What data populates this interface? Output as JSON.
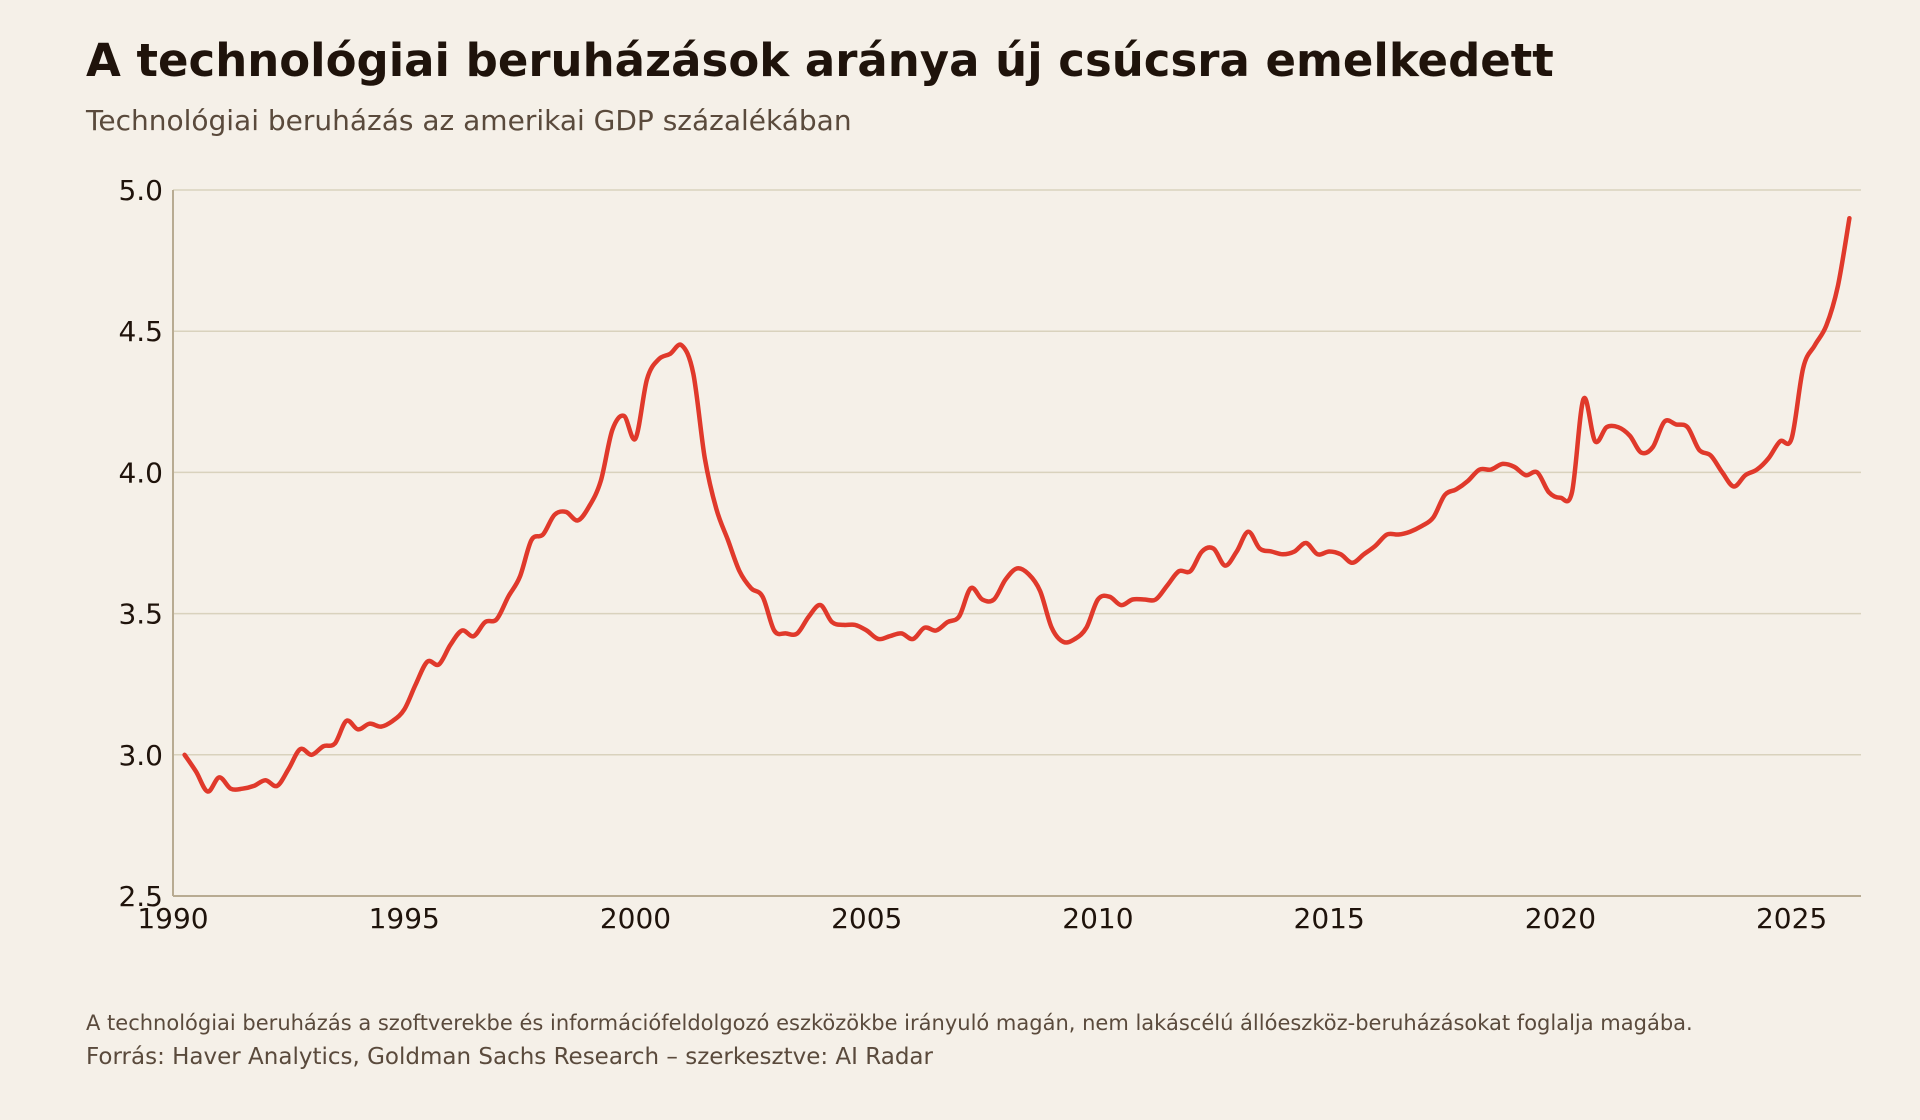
{
  "title": "A technológiai beruházások aránya új csúcsra emelkedett",
  "subtitle": "Technológiai beruházás az amerikai GDP százalékában",
  "footnote": "A technológiai beruházás a szoftverekbe és információfeldolgozó eszközökbe irányuló magán, nem lakáscélú állóeszköz-beruházásokat foglalja magába.",
  "source": "Forrás: Haver Analytics, Goldman Sachs Research – szerkesztve: AI Radar",
  "colors": {
    "background": "#f5f0e8",
    "line": "#e0392b",
    "grid": "#d9d2bd",
    "axis": "#b8ab92",
    "text": "#1f130b",
    "muted": "#5a4a3c"
  },
  "chart_data": {
    "type": "line",
    "xlim": [
      1990,
      2026.5
    ],
    "ylim": [
      2.5,
      5.0
    ],
    "xticks": [
      1990,
      1995,
      2000,
      2005,
      2010,
      2015,
      2020,
      2025
    ],
    "xtick_labels": [
      "1990",
      "1995",
      "2000",
      "2005",
      "2010",
      "2015",
      "2020",
      "2025"
    ],
    "yticks": [
      2.5,
      3.0,
      3.5,
      4.0,
      4.5,
      5.0
    ],
    "ytick_labels": [
      "2.5",
      "3.0",
      "3.5",
      "4.0",
      "4.5",
      "5.0"
    ],
    "grid": "horizontal",
    "series": [
      {
        "color": "#e0392b",
        "x": [
          1990.25,
          1990.5,
          1990.75,
          1991.0,
          1991.25,
          1991.5,
          1991.75,
          1992.0,
          1992.25,
          1992.5,
          1992.75,
          1993.0,
          1993.25,
          1993.5,
          1993.75,
          1994.0,
          1994.25,
          1994.5,
          1994.75,
          1995.0,
          1995.25,
          1995.5,
          1995.75,
          1996.0,
          1996.25,
          1996.5,
          1996.75,
          1997.0,
          1997.25,
          1997.5,
          1997.75,
          1998.0,
          1998.25,
          1998.5,
          1998.75,
          1999.0,
          1999.25,
          1999.5,
          1999.75,
          2000.0,
          2000.25,
          2000.5,
          2000.75,
          2001.0,
          2001.25,
          2001.5,
          2001.75,
          2002.0,
          2002.25,
          2002.5,
          2002.75,
          2003.0,
          2003.25,
          2003.5,
          2003.75,
          2004.0,
          2004.25,
          2004.5,
          2004.75,
          2005.0,
          2005.25,
          2005.5,
          2005.75,
          2006.0,
          2006.25,
          2006.5,
          2006.75,
          2007.0,
          2007.25,
          2007.5,
          2007.75,
          2008.0,
          2008.25,
          2008.5,
          2008.75,
          2009.0,
          2009.25,
          2009.5,
          2009.75,
          2010.0,
          2010.25,
          2010.5,
          2010.75,
          2011.0,
          2011.25,
          2011.5,
          2011.75,
          2012.0,
          2012.25,
          2012.5,
          2012.75,
          2013.0,
          2013.25,
          2013.5,
          2013.75,
          2014.0,
          2014.25,
          2014.5,
          2014.75,
          2015.0,
          2015.25,
          2015.5,
          2015.75,
          2016.0,
          2016.25,
          2016.5,
          2016.75,
          2017.0,
          2017.25,
          2017.5,
          2017.75,
          2018.0,
          2018.25,
          2018.5,
          2018.75,
          2019.0,
          2019.25,
          2019.5,
          2019.75,
          2020.0,
          2020.25,
          2020.5,
          2020.75,
          2021.0,
          2021.25,
          2021.5,
          2021.75,
          2022.0,
          2022.25,
          2022.5,
          2022.75,
          2023.0,
          2023.25,
          2023.5,
          2023.75,
          2024.0,
          2024.25,
          2024.5,
          2024.75,
          2025.0,
          2025.25,
          2025.5,
          2025.75,
          2026.0,
          2026.25
        ],
        "y": [
          3.0,
          2.94,
          2.87,
          2.92,
          2.88,
          2.88,
          2.89,
          2.91,
          2.89,
          2.95,
          3.02,
          3.0,
          3.03,
          3.04,
          3.12,
          3.09,
          3.11,
          3.1,
          3.12,
          3.16,
          3.25,
          3.33,
          3.32,
          3.39,
          3.44,
          3.42,
          3.47,
          3.48,
          3.56,
          3.63,
          3.76,
          3.78,
          3.85,
          3.86,
          3.83,
          3.88,
          3.97,
          4.15,
          4.2,
          4.12,
          4.33,
          4.4,
          4.42,
          4.45,
          4.35,
          4.05,
          3.87,
          3.76,
          3.65,
          3.59,
          3.56,
          3.44,
          3.43,
          3.43,
          3.49,
          3.53,
          3.47,
          3.46,
          3.46,
          3.44,
          3.41,
          3.42,
          3.43,
          3.41,
          3.45,
          3.44,
          3.47,
          3.49,
          3.59,
          3.55,
          3.55,
          3.62,
          3.66,
          3.64,
          3.58,
          3.45,
          3.4,
          3.41,
          3.45,
          3.55,
          3.56,
          3.53,
          3.55,
          3.55,
          3.55,
          3.6,
          3.65,
          3.65,
          3.72,
          3.73,
          3.67,
          3.72,
          3.79,
          3.73,
          3.72,
          3.71,
          3.72,
          3.75,
          3.71,
          3.72,
          3.71,
          3.68,
          3.71,
          3.74,
          3.78,
          3.78,
          3.79,
          3.81,
          3.84,
          3.92,
          3.94,
          3.97,
          4.01,
          4.01,
          4.03,
          4.02,
          3.99,
          4.0,
          3.93,
          3.91,
          3.93,
          4.26,
          4.11,
          4.16,
          4.16,
          4.13,
          4.07,
          4.09,
          4.18,
          4.17,
          4.16,
          4.08,
          4.06,
          4.0,
          3.95,
          3.99,
          4.01,
          4.05,
          4.11,
          4.12,
          4.37,
          4.45,
          4.52,
          4.66,
          4.9
        ]
      }
    ]
  }
}
